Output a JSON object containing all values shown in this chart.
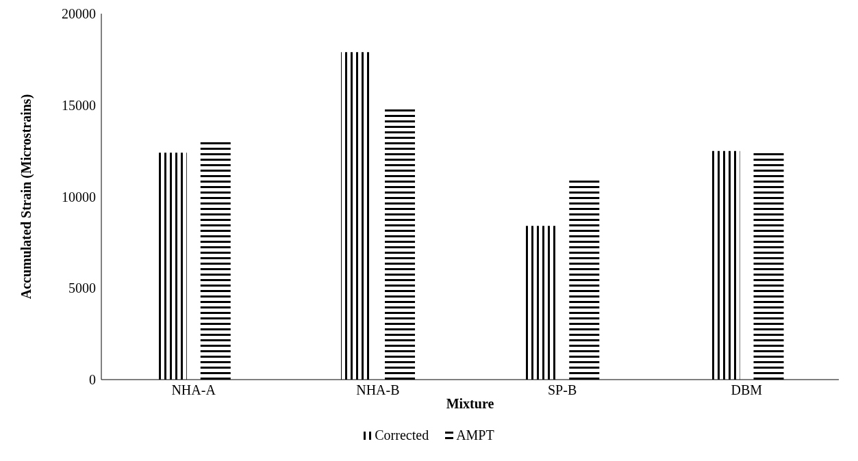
{
  "chart_data": {
    "type": "bar",
    "xlabel": "Mixture",
    "ylabel": "Accumulated Strain (Microstrains)",
    "categories": [
      "NHA-A",
      "NHA-B",
      "SP-B",
      "DBM"
    ],
    "series": [
      {
        "name": "Corrected",
        "color": "#000000",
        "values": [
          12400,
          17900,
          8400,
          12500
        ]
      },
      {
        "name": "AMPT",
        "color": "#000000",
        "values": [
          13000,
          14800,
          11000,
          12450
        ]
      }
    ],
    "ylim": [
      0,
      20000
    ],
    "yticks": [
      0,
      5000,
      10000,
      15000,
      20000
    ],
    "grid": false,
    "legend": "bottom"
  }
}
